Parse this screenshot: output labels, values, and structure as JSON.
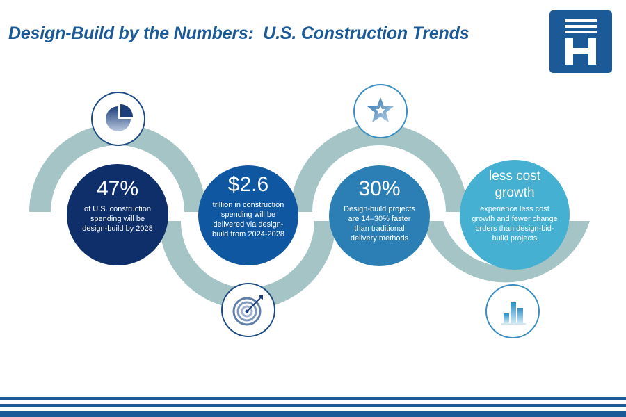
{
  "title": "Design-Build by the Numbers:  U.S. Construction Trends",
  "logo": {
    "name": "H-logo",
    "letter": "H",
    "color": "#1b5a97"
  },
  "stats": [
    {
      "value": "47%",
      "description": "of U.S. construction spending will be design-build by 2028",
      "color": "#0e2f6a",
      "icon": "pie-chart-icon"
    },
    {
      "value": "$2.6",
      "description": "trillion in construction spending will be delivered via design-build from 2024-2028",
      "color": "#0f57a1",
      "icon": "target-icon"
    },
    {
      "value": "30%",
      "description": "Design-build projects are 14–30% faster than traditional delivery methods",
      "color": "#2c7fb4",
      "icon": "star-icon"
    },
    {
      "value": "less cost growth",
      "description": "experience less cost growth and fewer change orders than design-bid-build projects",
      "color": "#45b0d2",
      "icon": "bar-chart-icon"
    }
  ],
  "colors": {
    "arc": "#a5c4c6",
    "title": "#1b5a97",
    "stripe": "#1b5a97"
  }
}
